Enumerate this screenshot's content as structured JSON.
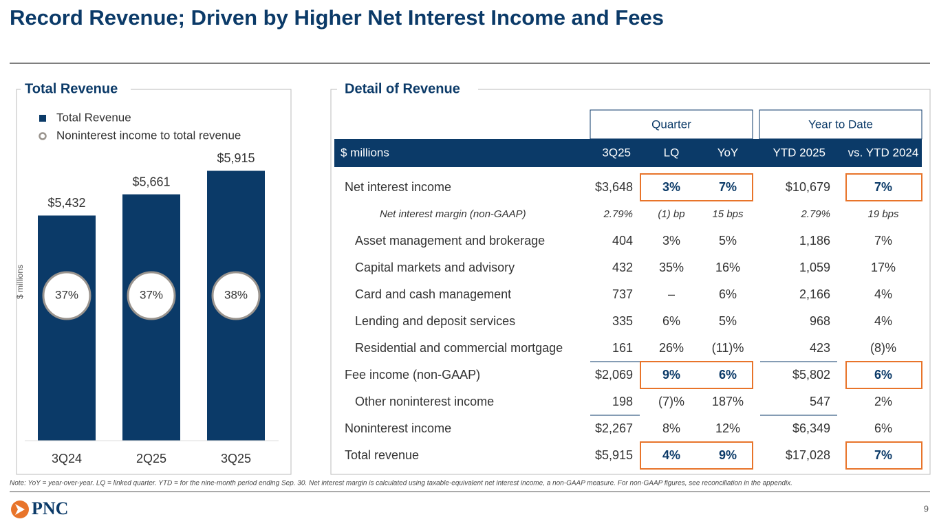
{
  "title": "Record Revenue; Driven by Higher Net Interest Income and Fees",
  "chart_panel_title": "Total Revenue",
  "chart_data": {
    "type": "bar",
    "ylabel": "$ millions",
    "categories": [
      "3Q24",
      "2Q25",
      "3Q25"
    ],
    "series": [
      {
        "name": "Total Revenue",
        "color": "#0b3a68",
        "marker": "square",
        "values": [
          5432,
          5661,
          5915
        ],
        "value_labels": [
          "$5,432",
          "$5,661",
          "$5,915"
        ]
      },
      {
        "name": "Noninterest income to total revenue",
        "color": "#9a948e",
        "marker": "circle",
        "values": [
          37,
          37,
          38
        ],
        "value_labels": [
          "37%",
          "37%",
          "38%"
        ]
      }
    ],
    "ylim": [
      3000,
      6000
    ]
  },
  "table_panel_title": "Detail of Revenue",
  "table": {
    "groups": [
      "Quarter",
      "Year to Date"
    ],
    "columns": [
      "$ millions",
      "3Q25",
      "LQ",
      "YoY",
      "YTD 2025",
      "vs. YTD 2024"
    ],
    "rows": [
      [
        "Net interest income",
        "$3,648",
        "3%",
        "7%",
        "$10,679",
        "7%"
      ],
      [
        "Net interest margin (non-GAAP)",
        "2.79%",
        "(1) bp",
        "15 bps",
        "2.79%",
        "19 bps"
      ],
      [
        "Asset management and brokerage",
        "404",
        "3%",
        "5%",
        "1,186",
        "7%"
      ],
      [
        "Capital markets and advisory",
        "432",
        "35%",
        "16%",
        "1,059",
        "17%"
      ],
      [
        "Card and cash management",
        "737",
        "–",
        "6%",
        "2,166",
        "4%"
      ],
      [
        "Lending and deposit services",
        "335",
        "6%",
        "5%",
        "968",
        "4%"
      ],
      [
        "Residential and commercial mortgage",
        "161",
        "26%",
        "(11)%",
        "423",
        "(8)%"
      ],
      [
        "Fee income (non-GAAP)",
        "$2,069",
        "9%",
        "6%",
        "$5,802",
        "6%"
      ],
      [
        "Other noninterest income",
        "198",
        "(7)%",
        "187%",
        "547",
        "2%"
      ],
      [
        "Noninterest income",
        "$2,267",
        "8%",
        "12%",
        "$6,349",
        "6%"
      ],
      [
        "Total revenue",
        "$5,915",
        "4%",
        "9%",
        "$17,028",
        "7%"
      ]
    ]
  },
  "note": "Note: YoY = year-over-year. LQ = linked quarter. YTD = for the nine-month period ending Sep. 30. Net interest margin is calculated using taxable-equivalent net interest income, a non-GAAP measure. For non-GAAP figures, see reconciliation in the appendix.",
  "logo_text": "PNC",
  "page_number": "9"
}
